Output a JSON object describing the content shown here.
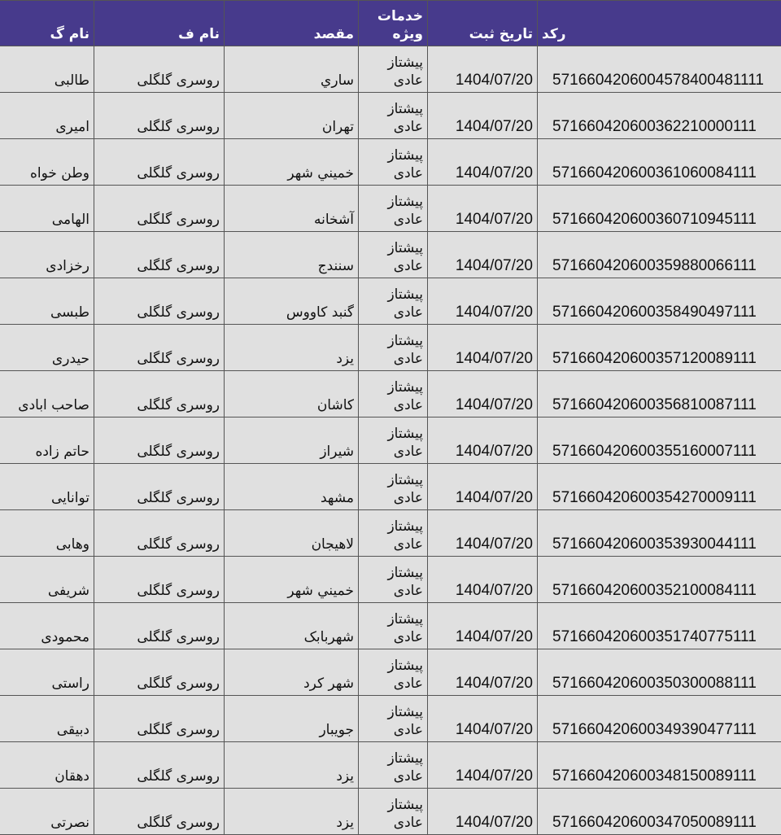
{
  "header": {
    "last_name": "نام گ",
    "first_name": "نام ف",
    "destination": "مقصد",
    "services_line1": "خدمات",
    "services_line2": "ویژه",
    "date": "تاریخ ثبت",
    "code": "رکد"
  },
  "colors": {
    "header_bg": "#473a8c",
    "cell_bg": "#e0e0e0"
  },
  "rows": [
    {
      "last_name": "طالبی",
      "first_name": "روسری گلگلی",
      "destination": "ساري",
      "service1": "پیشتاز",
      "service2": "عادی",
      "date": "1404/07/20",
      "code": "5716604206004578400481111"
    },
    {
      "last_name": "امیری",
      "first_name": "روسری گلگلی",
      "destination": "تهران",
      "service1": "پیشتاز",
      "service2": "عادی",
      "date": "1404/07/20",
      "code": "571660420600362210000111"
    },
    {
      "last_name": "وطن خواه",
      "first_name": "روسری گلگلی",
      "destination": "خميني شهر",
      "service1": "پیشتاز",
      "service2": "عادی",
      "date": "1404/07/20",
      "code": "571660420600361060084111"
    },
    {
      "last_name": "الهامی",
      "first_name": "روسری گلگلی",
      "destination": "آشخانه",
      "service1": "پیشتاز",
      "service2": "عادی",
      "date": "1404/07/20",
      "code": "571660420600360710945111"
    },
    {
      "last_name": "رخزادی",
      "first_name": "روسری گلگلی",
      "destination": "سنندج",
      "service1": "پیشتاز",
      "service2": "عادی",
      "date": "1404/07/20",
      "code": "571660420600359880066111"
    },
    {
      "last_name": "طبسی",
      "first_name": "روسری گلگلی",
      "destination": "گنبد کاووس",
      "service1": "پیشتاز",
      "service2": "عادی",
      "date": "1404/07/20",
      "code": "571660420600358490497111"
    },
    {
      "last_name": "حیدری",
      "first_name": "روسری گلگلی",
      "destination": "يزد",
      "service1": "پیشتاز",
      "service2": "عادی",
      "date": "1404/07/20",
      "code": "571660420600357120089111"
    },
    {
      "last_name": "صاحب ابادی",
      "first_name": "روسری گلگلی",
      "destination": "کاشان",
      "service1": "پیشتاز",
      "service2": "عادی",
      "date": "1404/07/20",
      "code": "571660420600356810087111"
    },
    {
      "last_name": "حاتم زاده",
      "first_name": "روسری گلگلی",
      "destination": "شيراز",
      "service1": "پیشتاز",
      "service2": "عادی",
      "date": "1404/07/20",
      "code": "571660420600355160007111"
    },
    {
      "last_name": "توانایی",
      "first_name": "روسری گلگلی",
      "destination": "مشهد",
      "service1": "پیشتاز",
      "service2": "عادی",
      "date": "1404/07/20",
      "code": "571660420600354270009111"
    },
    {
      "last_name": "وهابی",
      "first_name": "روسری گلگلی",
      "destination": "لاهيجان",
      "service1": "پیشتاز",
      "service2": "عادی",
      "date": "1404/07/20",
      "code": "571660420600353930044111"
    },
    {
      "last_name": "شریفی",
      "first_name": "روسری گلگلی",
      "destination": "خميني شهر",
      "service1": "پیشتاز",
      "service2": "عادی",
      "date": "1404/07/20",
      "code": "571660420600352100084111"
    },
    {
      "last_name": "محمودی",
      "first_name": "روسری گلگلی",
      "destination": "شهربابک",
      "service1": "پیشتاز",
      "service2": "عادی",
      "date": "1404/07/20",
      "code": "571660420600351740775111"
    },
    {
      "last_name": "راستی",
      "first_name": "روسری گلگلی",
      "destination": "شهر کرد",
      "service1": "پیشتاز",
      "service2": "عادی",
      "date": "1404/07/20",
      "code": "571660420600350300088111"
    },
    {
      "last_name": "دبیقی",
      "first_name": "روسری گلگلی",
      "destination": "جويبار",
      "service1": "پیشتاز",
      "service2": "عادی",
      "date": "1404/07/20",
      "code": "571660420600349390477111"
    },
    {
      "last_name": "دهقان",
      "first_name": "روسری گلگلی",
      "destination": "يزد",
      "service1": "پیشتاز",
      "service2": "عادی",
      "date": "1404/07/20",
      "code": "571660420600348150089111"
    },
    {
      "last_name": "نصرتی",
      "first_name": "روسری گلگلی",
      "destination": "يزد",
      "service1": "پیشتاز",
      "service2": "عادی",
      "date": "1404/07/20",
      "code": "571660420600347050089111"
    }
  ]
}
